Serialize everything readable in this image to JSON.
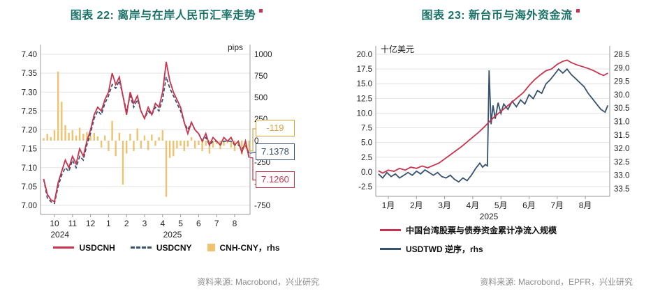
{
  "colors": {
    "teal": "#1b7268",
    "red": "#c8344e",
    "navy": "#35516e",
    "gold": "#eec26f",
    "gold_dark": "#d9a43f",
    "grid": "#e3e3e3",
    "axis": "#9a9a9a",
    "text": "#222222",
    "source": "#8c8c8c"
  },
  "left": {
    "title": "图表 22: 离岸与在岸人民币汇率走势",
    "unit_label": "pips",
    "legend": [
      {
        "label": "USDCNH",
        "marker": "line",
        "color": "#c8344e"
      },
      {
        "label": "USDCNY",
        "marker": "dash",
        "color": "#35516e"
      },
      {
        "label": "CNH-CNY，rhs",
        "marker": "square",
        "color": "#eec26f"
      }
    ],
    "callouts": [
      {
        "text": "-119",
        "value": -119,
        "axis": "right",
        "color": "#d9a43f"
      },
      {
        "text": "7.1378",
        "value": 7.1378,
        "axis": "left",
        "color": "#35516e"
      },
      {
        "text": "7.1260",
        "value": 7.126,
        "axis": "left",
        "color": "#c8344e"
      }
    ],
    "source": "资料来源: Macrobond，兴业研究"
  },
  "right": {
    "title": "图表 23: 新台币与海外资金流",
    "unit_label": "十亿美元",
    "legend": [
      {
        "label": "中国台湾股票与债券资金累计净流入规模",
        "marker": "line",
        "color": "#c8344e"
      },
      {
        "label": "USDTWD 逆序，rhs",
        "marker": "line",
        "color": "#35516e"
      }
    ],
    "source": "资料来源: Macrobond，EPFR，兴业研究"
  },
  "chart_data": [
    {
      "type": "line+bar",
      "title": "离岸与在岸人民币汇率走势",
      "ylabel_right": "pips",
      "ylim_left": [
        7.0,
        7.4
      ],
      "ylim_right": [
        -750,
        1000
      ],
      "yticks_left": [
        "7.40",
        "7.35",
        "7.30",
        "7.25",
        "7.20",
        "7.15",
        "7.10",
        "7.05",
        "7.00"
      ],
      "yticks_right": [
        "1000",
        "750",
        "500",
        "250",
        "0",
        "-250",
        "-500",
        "-750"
      ],
      "x_axis": {
        "note": "m = months since 2024-10-01",
        "start": -0.6,
        "step": 0.2
      },
      "xticks": [
        {
          "label": "10",
          "m": 0
        },
        {
          "label": "11",
          "m": 1
        },
        {
          "label": "12",
          "m": 2
        },
        {
          "label": "1",
          "m": 3
        },
        {
          "label": "2",
          "m": 4
        },
        {
          "label": "3",
          "m": 5
        },
        {
          "label": "4",
          "m": 6
        },
        {
          "label": "5",
          "m": 7
        },
        {
          "label": "6",
          "m": 8
        },
        {
          "label": "7",
          "m": 9
        },
        {
          "label": "8",
          "m": 10
        }
      ],
      "year_labels": [
        {
          "label": "2024",
          "m": 0.3
        },
        {
          "label": "2025",
          "m": 6.55
        }
      ],
      "series": [
        {
          "name": "USDCNH",
          "type": "line",
          "axis": "left",
          "color": "#c8344e",
          "last_value": 7.126,
          "values": [
            7.07,
            7.03,
            7.015,
            7.01,
            7.06,
            7.09,
            7.12,
            7.1,
            7.13,
            7.11,
            7.15,
            7.13,
            7.17,
            7.2,
            7.24,
            7.26,
            7.25,
            7.28,
            7.3,
            7.35,
            7.32,
            7.34,
            7.29,
            7.24,
            7.3,
            7.27,
            7.29,
            7.25,
            7.23,
            7.26,
            7.24,
            7.27,
            7.26,
            7.3,
            7.38,
            7.33,
            7.3,
            7.28,
            7.26,
            7.22,
            7.19,
            7.22,
            7.2,
            7.19,
            7.17,
            7.19,
            7.16,
            7.18,
            7.17,
            7.16,
            7.18,
            7.17,
            7.18,
            7.16,
            7.17,
            7.14,
            7.17,
            7.126
          ]
        },
        {
          "name": "USDCNY",
          "type": "line-dashed",
          "axis": "left",
          "color": "#35516e",
          "last_value": 7.1378,
          "values": [
            7.07,
            7.02,
            7.01,
            7.005,
            7.05,
            7.08,
            7.1,
            7.09,
            7.12,
            7.1,
            7.13,
            7.12,
            7.16,
            7.19,
            7.23,
            7.25,
            7.24,
            7.27,
            7.29,
            7.32,
            7.31,
            7.33,
            7.29,
            7.25,
            7.29,
            7.26,
            7.28,
            7.25,
            7.23,
            7.25,
            7.24,
            7.26,
            7.25,
            7.28,
            7.34,
            7.31,
            7.29,
            7.27,
            7.25,
            7.22,
            7.2,
            7.22,
            7.2,
            7.19,
            7.17,
            7.18,
            7.16,
            7.17,
            7.17,
            7.16,
            7.17,
            7.17,
            7.17,
            7.16,
            7.16,
            7.15,
            7.16,
            7.1378
          ]
        },
        {
          "name": "CNH-CNY",
          "type": "bar",
          "axis": "right",
          "unit": "pips",
          "color": "#eec26f",
          "last_value": -119,
          "values": [
            30,
            80,
            40,
            120,
            800,
            450,
            180,
            90,
            120,
            60,
            150,
            80,
            100,
            60,
            90,
            50,
            -80,
            60,
            -120,
            230,
            -180,
            90,
            -510,
            -150,
            80,
            -120,
            140,
            -90,
            60,
            -110,
            70,
            -60,
            40,
            120,
            -650,
            -200,
            -180,
            -90,
            -60,
            -120,
            -70,
            40,
            -90,
            -50,
            -120,
            -60,
            -150,
            -80,
            -40,
            -100,
            -60,
            -30,
            -80,
            -120,
            -60,
            -160,
            -90,
            -119
          ]
        }
      ]
    },
    {
      "type": "line",
      "title": "新台币与海外资金流",
      "ylabel_left": "十亿美元",
      "ylim_left": [
        -2.5,
        20.0
      ],
      "ylim_right": [
        28.5,
        33.5
      ],
      "right_axis_inverted": true,
      "yticks_left": [
        "20.0",
        "17.5",
        "15.0",
        "12.5",
        "10.0",
        "7.5",
        "5.0",
        "2.5",
        "0.0",
        "-2.5"
      ],
      "yticks_right": [
        "28.5",
        "29.0",
        "29.5",
        "30.0",
        "30.5",
        "31.0",
        "31.5",
        "32.0",
        "32.5",
        "33.0",
        "33.5"
      ],
      "x_axis": {
        "note": "m = month of 2025 (1 = Jan)"
      },
      "xticks": [
        "1月",
        "2月",
        "3月",
        "4月",
        "5月",
        "6月",
        "7月",
        "8月"
      ],
      "year_label": "2025",
      "series": [
        {
          "name": "中国台湾股票与债券资金累计净流入规模",
          "axis": "left",
          "color": "#c8344e",
          "points": [
            [
              0.65,
              0.2
            ],
            [
              0.8,
              -0.2
            ],
            [
              1.0,
              0.3
            ],
            [
              1.2,
              0.1
            ],
            [
              1.4,
              0.6
            ],
            [
              1.6,
              0.3
            ],
            [
              1.8,
              0.8
            ],
            [
              2.0,
              0.6
            ],
            [
              2.2,
              1.0
            ],
            [
              2.4,
              0.7
            ],
            [
              2.6,
              1.1
            ],
            [
              2.8,
              1.5
            ],
            [
              3.0,
              2.2
            ],
            [
              3.2,
              2.9
            ],
            [
              3.4,
              3.6
            ],
            [
              3.6,
              4.3
            ],
            [
              3.8,
              5.1
            ],
            [
              4.0,
              5.9
            ],
            [
              4.2,
              6.7
            ],
            [
              4.4,
              7.6
            ],
            [
              4.6,
              8.6
            ],
            [
              4.8,
              9.5
            ],
            [
              5.0,
              10.3
            ],
            [
              5.2,
              11.1
            ],
            [
              5.4,
              11.9
            ],
            [
              5.6,
              12.7
            ],
            [
              5.8,
              13.5
            ],
            [
              6.0,
              14.7
            ],
            [
              6.2,
              15.7
            ],
            [
              6.4,
              16.5
            ],
            [
              6.6,
              17.2
            ],
            [
              6.8,
              17.5
            ],
            [
              7.0,
              18.3
            ],
            [
              7.2,
              18.8
            ],
            [
              7.35,
              19.0
            ],
            [
              7.5,
              18.6
            ],
            [
              7.7,
              18.2
            ],
            [
              7.9,
              17.9
            ],
            [
              8.1,
              17.6
            ],
            [
              8.3,
              17.2
            ],
            [
              8.5,
              16.7
            ],
            [
              8.65,
              16.4
            ],
            [
              8.8,
              16.8
            ]
          ]
        },
        {
          "name": "USDTWD 逆序, rhs",
          "axis": "right",
          "color": "#35516e",
          "points": [
            [
              0.65,
              32.95
            ],
            [
              0.8,
              33.1
            ],
            [
              0.95,
              32.9
            ],
            [
              1.1,
              33.05
            ],
            [
              1.25,
              32.95
            ],
            [
              1.4,
              33.1
            ],
            [
              1.55,
              33.0
            ],
            [
              1.7,
              32.9
            ],
            [
              1.85,
              33.0
            ],
            [
              2.0,
              32.85
            ],
            [
              2.15,
              32.95
            ],
            [
              2.3,
              32.8
            ],
            [
              2.45,
              32.9
            ],
            [
              2.6,
              33.0
            ],
            [
              2.75,
              32.9
            ],
            [
              2.9,
              33.05
            ],
            [
              3.05,
              33.1
            ],
            [
              3.2,
              33.0
            ],
            [
              3.35,
              33.15
            ],
            [
              3.5,
              33.25
            ],
            [
              3.65,
              33.1
            ],
            [
              3.8,
              33.2
            ],
            [
              3.95,
              33.0
            ],
            [
              4.1,
              32.75
            ],
            [
              4.25,
              32.55
            ],
            [
              4.35,
              32.7
            ],
            [
              4.45,
              32.6
            ],
            [
              4.52,
              32.65
            ],
            [
              4.58,
              29.1
            ],
            [
              4.65,
              31.1
            ],
            [
              4.72,
              30.4
            ],
            [
              4.8,
              30.9
            ],
            [
              4.9,
              30.3
            ],
            [
              5.0,
              30.7
            ],
            [
              5.1,
              30.35
            ],
            [
              5.25,
              30.55
            ],
            [
              5.4,
              30.25
            ],
            [
              5.55,
              30.45
            ],
            [
              5.7,
              30.2
            ],
            [
              5.85,
              30.35
            ],
            [
              6.0,
              30.0
            ],
            [
              6.15,
              30.15
            ],
            [
              6.3,
              29.85
            ],
            [
              6.45,
              29.95
            ],
            [
              6.6,
              29.6
            ],
            [
              6.75,
              29.45
            ],
            [
              6.9,
              29.25
            ],
            [
              7.05,
              29.05
            ],
            [
              7.2,
              29.2
            ],
            [
              7.35,
              29.05
            ],
            [
              7.5,
              29.25
            ],
            [
              7.65,
              29.4
            ],
            [
              7.8,
              29.55
            ],
            [
              7.95,
              29.7
            ],
            [
              8.1,
              29.95
            ],
            [
              8.25,
              30.15
            ],
            [
              8.4,
              30.35
            ],
            [
              8.55,
              30.55
            ],
            [
              8.7,
              30.65
            ],
            [
              8.8,
              30.4
            ]
          ]
        }
      ]
    }
  ]
}
